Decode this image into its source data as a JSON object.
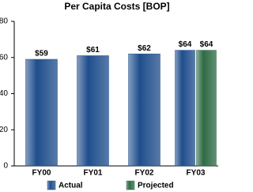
{
  "chart_data": {
    "type": "bar",
    "title": "Per Capita Costs [BOP]",
    "categories": [
      "FY00",
      "FY01",
      "FY02",
      "FY03"
    ],
    "series": [
      {
        "name": "Actual",
        "color": "#1f4e8c",
        "values": [
          59,
          61,
          62,
          64
        ],
        "value_labels": [
          "$59",
          "$61",
          "$62",
          "$64"
        ]
      },
      {
        "name": "Projected",
        "color": "#2e6b45",
        "values": [
          null,
          null,
          null,
          64
        ],
        "value_labels": [
          null,
          null,
          null,
          "$64"
        ]
      }
    ],
    "ylim": [
      0,
      80
    ],
    "yticks": [
      0,
      20,
      40,
      60,
      80
    ],
    "grid": false
  }
}
